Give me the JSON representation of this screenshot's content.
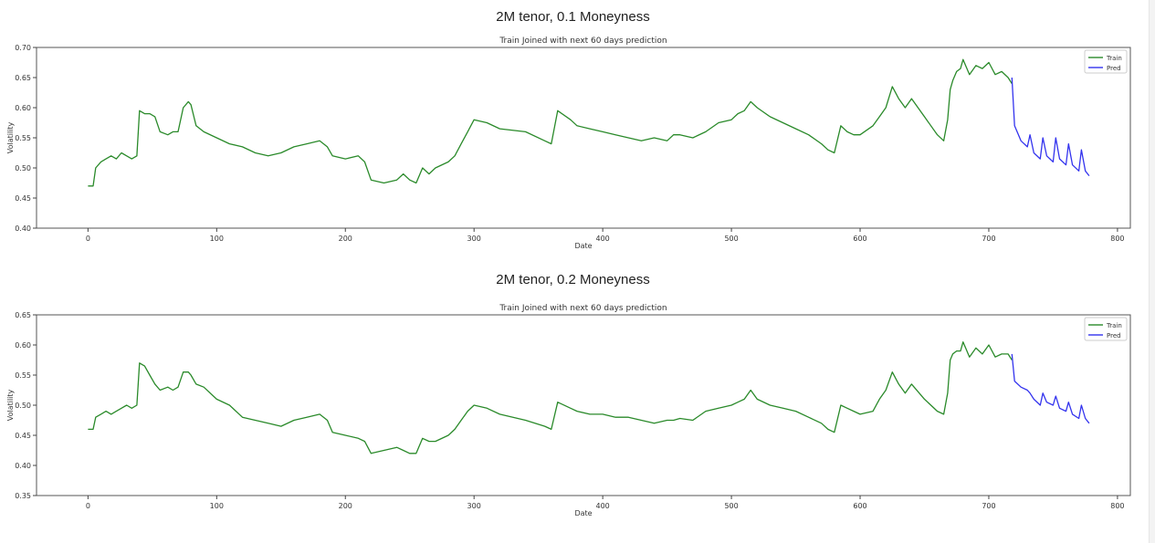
{
  "panels": [
    {
      "heading": "2M tenor, 0.1 Moneyness"
    },
    {
      "heading": "2M tenor, 0.2 Moneyness"
    }
  ],
  "colors": {
    "train": "#2a8a2a",
    "pred": "#3333ee",
    "frame": "#555555"
  },
  "chart_data": [
    {
      "type": "line",
      "title": "Train Joined with next 60 days prediction",
      "xlabel": "Date",
      "ylabel": "Volatility",
      "xlim": [
        -40,
        810
      ],
      "ylim": [
        0.4,
        0.7
      ],
      "xticks": [
        0,
        100,
        200,
        300,
        400,
        500,
        600,
        700,
        800
      ],
      "yticks": [
        0.4,
        0.45,
        0.5,
        0.55,
        0.6,
        0.65,
        0.7
      ],
      "ytick_labels": [
        "0.40",
        "0.45",
        "0.50",
        "0.55",
        "0.60",
        "0.65",
        "0.70"
      ],
      "legend_position": "top-right",
      "grid": false,
      "series": [
        {
          "name": "Train",
          "color": "#2a8a2a",
          "x": [
            0,
            4,
            6,
            10,
            14,
            18,
            22,
            26,
            30,
            34,
            38,
            40,
            44,
            48,
            52,
            56,
            62,
            66,
            70,
            74,
            78,
            80,
            84,
            90,
            100,
            110,
            120,
            130,
            140,
            150,
            160,
            170,
            180,
            186,
            190,
            200,
            210,
            215,
            220,
            230,
            240,
            245,
            250,
            255,
            260,
            265,
            270,
            280,
            285,
            290,
            295,
            300,
            310,
            320,
            340,
            355,
            360,
            365,
            375,
            380,
            390,
            400,
            410,
            420,
            430,
            440,
            450,
            455,
            460,
            470,
            480,
            490,
            500,
            505,
            510,
            515,
            520,
            530,
            540,
            550,
            560,
            570,
            575,
            580,
            585,
            590,
            595,
            600,
            610,
            615,
            620,
            625,
            630,
            635,
            640,
            650,
            660,
            665,
            668,
            670,
            672,
            675,
            678,
            680,
            685,
            690,
            695,
            700,
            705,
            710,
            715,
            718
          ],
          "y": [
            0.47,
            0.47,
            0.5,
            0.51,
            0.515,
            0.52,
            0.515,
            0.525,
            0.52,
            0.515,
            0.52,
            0.595,
            0.59,
            0.59,
            0.585,
            0.56,
            0.555,
            0.56,
            0.56,
            0.6,
            0.61,
            0.605,
            0.57,
            0.56,
            0.55,
            0.54,
            0.535,
            0.525,
            0.52,
            0.525,
            0.535,
            0.54,
            0.545,
            0.535,
            0.52,
            0.515,
            0.52,
            0.51,
            0.48,
            0.475,
            0.48,
            0.49,
            0.48,
            0.475,
            0.5,
            0.49,
            0.5,
            0.51,
            0.52,
            0.54,
            0.56,
            0.58,
            0.575,
            0.565,
            0.56,
            0.545,
            0.54,
            0.595,
            0.58,
            0.57,
            0.565,
            0.56,
            0.555,
            0.55,
            0.545,
            0.55,
            0.545,
            0.555,
            0.555,
            0.55,
            0.56,
            0.575,
            0.58,
            0.59,
            0.595,
            0.61,
            0.6,
            0.585,
            0.575,
            0.565,
            0.555,
            0.54,
            0.53,
            0.525,
            0.57,
            0.56,
            0.555,
            0.555,
            0.57,
            0.585,
            0.6,
            0.635,
            0.615,
            0.6,
            0.615,
            0.585,
            0.555,
            0.545,
            0.58,
            0.63,
            0.645,
            0.66,
            0.665,
            0.68,
            0.655,
            0.67,
            0.665,
            0.675,
            0.655,
            0.66,
            0.65,
            0.64
          ]
        },
        {
          "name": "Pred",
          "color": "#3333ee",
          "x": [
            718,
            720,
            725,
            730,
            732,
            735,
            740,
            742,
            745,
            750,
            752,
            755,
            760,
            762,
            765,
            770,
            772,
            775,
            778
          ],
          "y": [
            0.65,
            0.57,
            0.545,
            0.535,
            0.555,
            0.525,
            0.515,
            0.55,
            0.52,
            0.51,
            0.55,
            0.515,
            0.505,
            0.54,
            0.505,
            0.495,
            0.53,
            0.495,
            0.487
          ]
        }
      ]
    },
    {
      "type": "line",
      "title": "Train Joined with next 60 days prediction",
      "xlabel": "Date",
      "ylabel": "Volatility",
      "xlim": [
        -40,
        810
      ],
      "ylim": [
        0.35,
        0.65
      ],
      "xticks": [
        0,
        100,
        200,
        300,
        400,
        500,
        600,
        700,
        800
      ],
      "yticks": [
        0.35,
        0.4,
        0.45,
        0.5,
        0.55,
        0.6,
        0.65
      ],
      "ytick_labels": [
        "0.35",
        "0.40",
        "0.45",
        "0.50",
        "0.55",
        "0.60",
        "0.65"
      ],
      "legend_position": "top-right",
      "grid": false,
      "series": [
        {
          "name": "Train",
          "color": "#2a8a2a",
          "x": [
            0,
            4,
            6,
            10,
            14,
            18,
            22,
            26,
            30,
            34,
            38,
            40,
            44,
            48,
            52,
            56,
            62,
            66,
            70,
            74,
            78,
            80,
            84,
            90,
            100,
            110,
            120,
            130,
            140,
            150,
            160,
            170,
            180,
            186,
            190,
            200,
            210,
            215,
            220,
            230,
            240,
            245,
            250,
            255,
            260,
            265,
            270,
            280,
            285,
            290,
            295,
            300,
            310,
            320,
            340,
            355,
            360,
            365,
            375,
            380,
            390,
            400,
            410,
            420,
            430,
            440,
            450,
            455,
            460,
            470,
            480,
            490,
            500,
            505,
            510,
            515,
            520,
            530,
            540,
            550,
            560,
            570,
            575,
            580,
            585,
            590,
            595,
            600,
            610,
            615,
            620,
            625,
            630,
            635,
            640,
            650,
            660,
            665,
            668,
            670,
            672,
            675,
            678,
            680,
            685,
            690,
            695,
            700,
            705,
            710,
            715,
            718
          ],
          "y": [
            0.46,
            0.46,
            0.48,
            0.485,
            0.49,
            0.485,
            0.49,
            0.495,
            0.5,
            0.495,
            0.5,
            0.57,
            0.565,
            0.55,
            0.535,
            0.525,
            0.53,
            0.525,
            0.53,
            0.555,
            0.555,
            0.55,
            0.535,
            0.53,
            0.51,
            0.5,
            0.48,
            0.475,
            0.47,
            0.465,
            0.475,
            0.48,
            0.485,
            0.475,
            0.455,
            0.45,
            0.445,
            0.44,
            0.42,
            0.425,
            0.43,
            0.425,
            0.42,
            0.42,
            0.445,
            0.44,
            0.44,
            0.45,
            0.46,
            0.475,
            0.49,
            0.5,
            0.495,
            0.485,
            0.475,
            0.465,
            0.46,
            0.505,
            0.495,
            0.49,
            0.485,
            0.485,
            0.48,
            0.48,
            0.475,
            0.47,
            0.475,
            0.475,
            0.478,
            0.475,
            0.49,
            0.495,
            0.5,
            0.505,
            0.51,
            0.525,
            0.51,
            0.5,
            0.495,
            0.49,
            0.48,
            0.47,
            0.46,
            0.455,
            0.5,
            0.495,
            0.49,
            0.485,
            0.49,
            0.51,
            0.525,
            0.555,
            0.535,
            0.52,
            0.535,
            0.51,
            0.49,
            0.485,
            0.52,
            0.575,
            0.585,
            0.59,
            0.59,
            0.605,
            0.58,
            0.595,
            0.585,
            0.6,
            0.58,
            0.585,
            0.585,
            0.575
          ]
        },
        {
          "name": "Pred",
          "color": "#3333ee",
          "x": [
            718,
            720,
            725,
            730,
            732,
            735,
            740,
            742,
            745,
            750,
            752,
            755,
            760,
            762,
            765,
            770,
            772,
            775,
            778
          ],
          "y": [
            0.585,
            0.54,
            0.53,
            0.525,
            0.52,
            0.51,
            0.5,
            0.52,
            0.505,
            0.5,
            0.515,
            0.495,
            0.49,
            0.505,
            0.485,
            0.478,
            0.5,
            0.478,
            0.47
          ]
        }
      ]
    }
  ]
}
